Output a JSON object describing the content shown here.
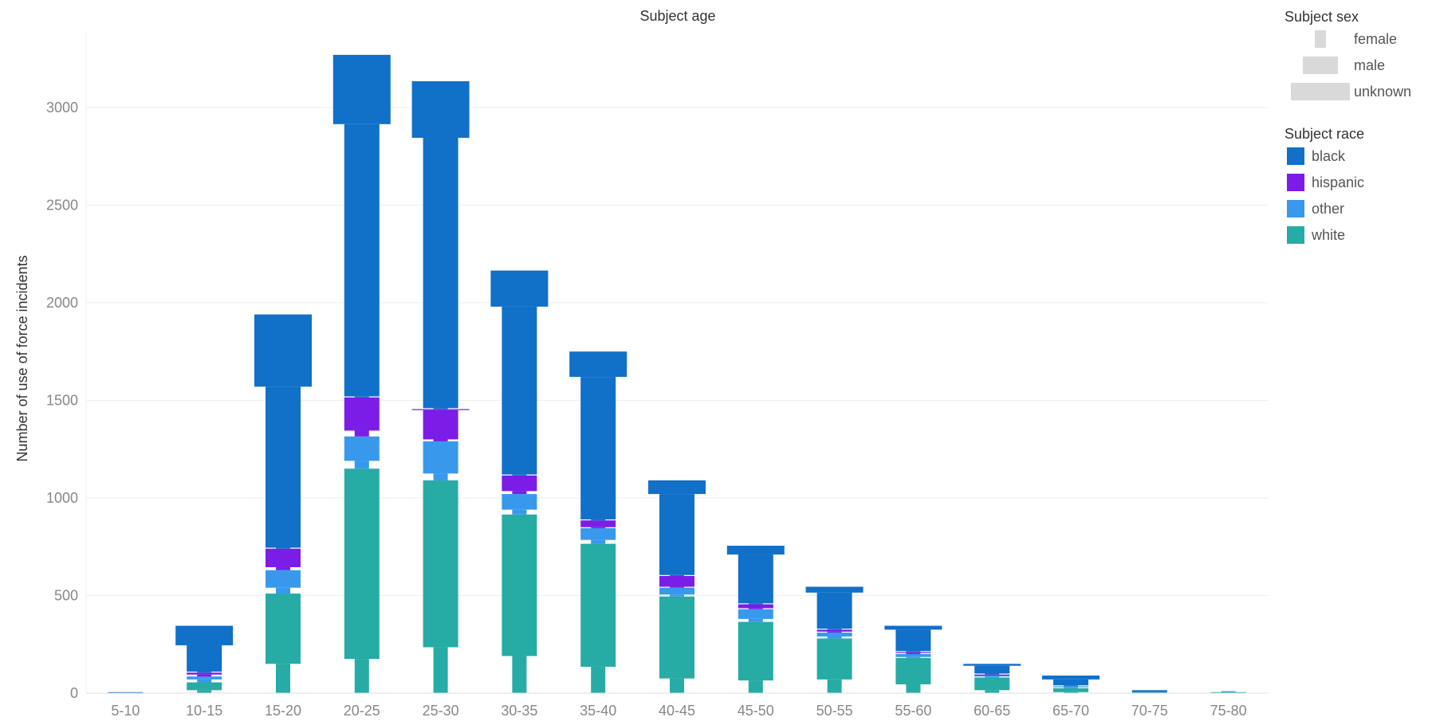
{
  "chart_data": {
    "type": "bar",
    "title": "Subject age",
    "ylabel": "Number of use of force incidents",
    "xlabel": "",
    "ylim": [
      0,
      3300
    ],
    "yticks": [
      0,
      500,
      1000,
      1500,
      2000,
      2500,
      3000
    ],
    "categories": [
      "5-10",
      "10-15",
      "15-20",
      "20-25",
      "25-30",
      "30-35",
      "35-40",
      "40-45",
      "45-50",
      "50-55",
      "55-60",
      "60-65",
      "65-70",
      "70-75",
      "75-80"
    ],
    "sex_legend": {
      "title": "Subject sex",
      "items": [
        {
          "label": "female",
          "width_rank": 1
        },
        {
          "label": "male",
          "width_rank": 2
        },
        {
          "label": "unknown",
          "width_rank": 3
        }
      ]
    },
    "race_legend": {
      "title": "Subject race",
      "items": [
        {
          "label": "black",
          "color": "#1170c8"
        },
        {
          "label": "hispanic",
          "color": "#7b1de6"
        },
        {
          "label": "other",
          "color": "#3899ec"
        },
        {
          "label": "white",
          "color": "#27aba5"
        }
      ]
    },
    "note": "Stacked by race; within each race, female (narrow), male (wide), unknown (widest) segments are stacked bottom to top.",
    "data": [
      {
        "age": "5-10",
        "white": [
          0,
          0,
          0
        ],
        "other": [
          0,
          0,
          0
        ],
        "hispanic": [
          0,
          0,
          0
        ],
        "black": [
          0,
          5,
          0
        ]
      },
      {
        "age": "10-15",
        "white": [
          15,
          40,
          0
        ],
        "other": [
          15,
          15,
          0
        ],
        "hispanic": [
          10,
          10,
          0
        ],
        "black": [
          5,
          135,
          100
        ]
      },
      {
        "age": "15-20",
        "white": [
          150,
          360,
          0
        ],
        "other": [
          30,
          90,
          0
        ],
        "hispanic": [
          15,
          95,
          0
        ],
        "black": [
          5,
          825,
          370
        ]
      },
      {
        "age": "20-25",
        "white": [
          175,
          975,
          0
        ],
        "other": [
          40,
          125,
          0
        ],
        "hispanic": [
          30,
          170,
          0
        ],
        "black": [
          5,
          1395,
          355
        ]
      },
      {
        "age": "25-30",
        "white": [
          235,
          855,
          0
        ],
        "other": [
          35,
          165,
          0
        ],
        "hispanic": [
          10,
          150,
          5
        ],
        "black": [
          5,
          1385,
          290
        ]
      },
      {
        "age": "30-35",
        "white": [
          190,
          725,
          0
        ],
        "other": [
          25,
          80,
          0
        ],
        "hispanic": [
          15,
          80,
          0
        ],
        "black": [
          5,
          860,
          185
        ]
      },
      {
        "age": "35-40",
        "white": [
          135,
          630,
          0
        ],
        "other": [
          20,
          60,
          0
        ],
        "hispanic": [
          5,
          35,
          0
        ],
        "black": [
          5,
          730,
          130
        ]
      },
      {
        "age": "40-45",
        "white": [
          75,
          420,
          0
        ],
        "other": [
          10,
          35,
          0
        ],
        "hispanic": [
          5,
          55,
          0
        ],
        "black": [
          5,
          415,
          70
        ]
      },
      {
        "age": "45-50",
        "white": [
          65,
          300,
          0
        ],
        "other": [
          15,
          50,
          0
        ],
        "hispanic": [
          5,
          20,
          0
        ],
        "black": [
          5,
          250,
          45
        ]
      },
      {
        "age": "50-55",
        "white": [
          70,
          210,
          0
        ],
        "other": [
          10,
          20,
          0
        ],
        "hispanic": [
          5,
          10,
          0
        ],
        "black": [
          5,
          185,
          30
        ]
      },
      {
        "age": "55-60",
        "white": [
          45,
          135,
          0
        ],
        "other": [
          5,
          15,
          0
        ],
        "hispanic": [
          5,
          5,
          0
        ],
        "black": [
          5,
          110,
          20
        ]
      },
      {
        "age": "60-65",
        "white": [
          15,
          65,
          0
        ],
        "other": [
          5,
          5,
          0
        ],
        "hispanic": [
          0,
          5,
          0
        ],
        "black": [
          5,
          40,
          10
        ]
      },
      {
        "age": "65-70",
        "white": [
          5,
          20,
          0
        ],
        "other": [
          5,
          5,
          0
        ],
        "hispanic": [
          0,
          0,
          0
        ],
        "black": [
          5,
          30,
          20
        ]
      },
      {
        "age": "70-75",
        "white": [
          0,
          5,
          0
        ],
        "other": [
          0,
          0,
          0
        ],
        "hispanic": [
          0,
          0,
          0
        ],
        "black": [
          0,
          10,
          0
        ]
      },
      {
        "age": "75-80",
        "white": [
          0,
          5,
          0
        ],
        "other": [
          5,
          0,
          0
        ],
        "hispanic": [
          0,
          0,
          0
        ],
        "black": [
          0,
          0,
          0
        ]
      }
    ]
  }
}
